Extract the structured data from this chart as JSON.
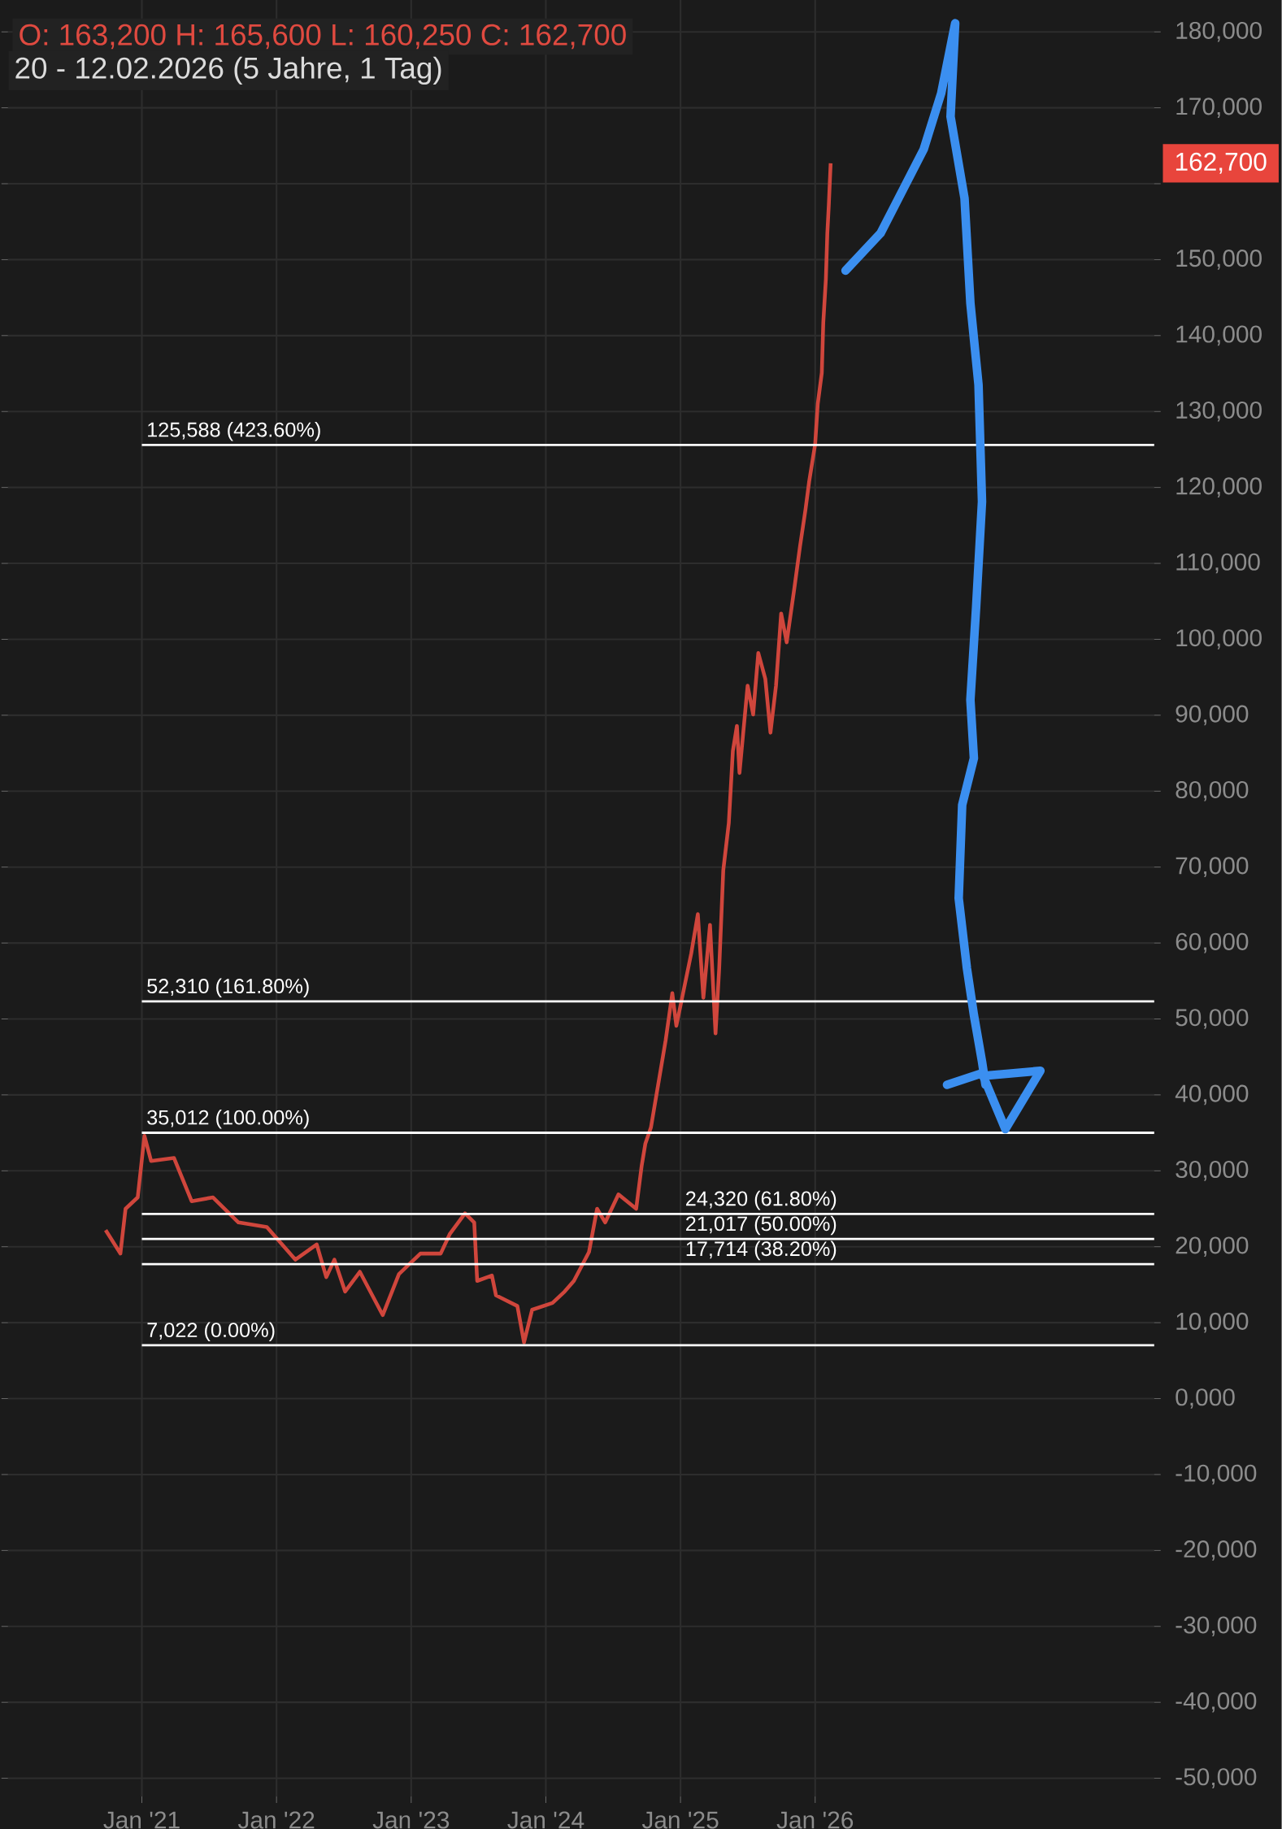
{
  "chart_data": {
    "type": "line",
    "title": "O: 163,200  H: 165,600  L: 160,250  C: 162,700",
    "subtitle": "20 - 12.02.2026  (5 Jahre, 1 Tag)",
    "x": [
      "2020-09-24",
      "2020-11-03",
      "2020-11-17",
      "2020-12-20",
      "2021-01-08",
      "2021-01-26",
      "2021-03-29",
      "2021-05-16",
      "2021-07-13",
      "2021-09-20",
      "2021-12-06",
      "2022-02-21",
      "2022-04-20",
      "2022-05-16",
      "2022-06-07",
      "2022-07-06",
      "2022-08-15",
      "2022-10-16",
      "2022-11-29",
      "2023-01-26",
      "2023-03-22",
      "2023-04-16",
      "2023-05-27",
      "2023-06-21",
      "2023-06-29",
      "2023-08-08",
      "2023-08-19",
      "2023-10-16",
      "2023-11-03",
      "2023-11-25",
      "2024-01-19",
      "2024-02-21",
      "2024-03-17",
      "2024-04-27",
      "2024-05-19",
      "2024-06-10",
      "2024-07-16",
      "2024-09-02",
      "2024-09-17",
      "2024-09-27",
      "2024-10-12",
      "2024-11-21",
      "2024-12-09",
      "2024-12-20",
      "2025-01-30",
      "2025-02-17",
      "2025-03-04",
      "2025-03-22",
      "2025-04-06",
      "2025-04-16",
      "2025-04-27",
      "2025-05-12",
      "2025-05-23",
      "2025-06-03",
      "2025-06-10",
      "2025-07-02",
      "2025-07-17",
      "2025-07-31",
      "2025-08-19",
      "2025-09-02",
      "2025-09-17",
      "2025-10-01",
      "2025-10-16",
      "2025-11-06",
      "2025-11-21",
      "2025-12-06",
      "2025-12-16",
      "2026-01-01",
      "2026-01-08",
      "2026-01-19",
      "2026-01-23",
      "2026-01-30",
      "2026-02-03",
      "2026-02-07",
      "2026-02-12"
    ],
    "series": [
      {
        "color": "#d0463c",
        "values": [
          22200,
          19100,
          25000,
          26500,
          34600,
          31300,
          31700,
          26000,
          26500,
          23200,
          22600,
          18300,
          20300,
          16000,
          18300,
          14100,
          16700,
          11000,
          16400,
          19100,
          19100,
          21700,
          24400,
          23200,
          15500,
          16200,
          13600,
          12200,
          7400,
          11700,
          12600,
          14100,
          15500,
          19300,
          25000,
          23200,
          26900,
          25000,
          30700,
          33600,
          35700,
          47200,
          53400,
          49100,
          58600,
          63800,
          52800,
          62400,
          48100,
          56700,
          69600,
          75800,
          85300,
          88600,
          82400,
          93900,
          90100,
          98200,
          94800,
          87700,
          93900,
          103400,
          99600,
          106800,
          112200,
          117100,
          120800,
          125700,
          131000,
          135100,
          141700,
          147400,
          153500,
          157200,
          162700
        ]
      }
    ],
    "xlim": [
      "2020-01-03",
      "2028-07-08"
    ],
    "ylim": [
      -52400,
      184200
    ],
    "xticks": [
      {
        "value": "2021-01-01",
        "label": "Jan '21"
      },
      {
        "value": "2022-01-01",
        "label": "Jan '22"
      },
      {
        "value": "2023-01-01",
        "label": "Jan '23"
      },
      {
        "value": "2024-01-01",
        "label": "Jan '24"
      },
      {
        "value": "2025-01-01",
        "label": "Jan '25"
      },
      {
        "value": "2026-01-01",
        "label": "Jan '26"
      }
    ],
    "yticks": [
      {
        "value": -50000,
        "label": "-50,000"
      },
      {
        "value": -40000,
        "label": "-40,000"
      },
      {
        "value": -30000,
        "label": "-30,000"
      },
      {
        "value": -20000,
        "label": "-20,000"
      },
      {
        "value": -10000,
        "label": "-10,000"
      },
      {
        "value": 0,
        "label": "0,000"
      },
      {
        "value": 10000,
        "label": "10,000"
      },
      {
        "value": 20000,
        "label": "20,000"
      },
      {
        "value": 30000,
        "label": "30,000"
      },
      {
        "value": 40000,
        "label": "40,000"
      },
      {
        "value": 50000,
        "label": "50,000"
      },
      {
        "value": 60000,
        "label": "60,000"
      },
      {
        "value": 70000,
        "label": "70,000"
      },
      {
        "value": 80000,
        "label": "80,000"
      },
      {
        "value": 90000,
        "label": "90,000"
      },
      {
        "value": 100000,
        "label": "100,000"
      },
      {
        "value": 110000,
        "label": "110,000"
      },
      {
        "value": 120000,
        "label": "120,000"
      },
      {
        "value": 130000,
        "label": "130,000"
      },
      {
        "value": 140000,
        "label": "140,000"
      },
      {
        "value": 150000,
        "label": "150,000"
      },
      {
        "value": 160000,
        "label": null
      },
      {
        "value": 170000,
        "label": "170,000"
      },
      {
        "value": 180000,
        "label": "180,000"
      }
    ],
    "grid": true,
    "ref_lines": [
      {
        "axis": "y",
        "value": 125588,
        "label": "125,588 (423.60%)",
        "color": "#ffffff"
      },
      {
        "axis": "y",
        "value": 52310,
        "label": "52,310 (161.80%)",
        "color": "#ffffff"
      },
      {
        "axis": "y",
        "value": 35012,
        "label": "35,012 (100.00%)",
        "color": "#ffffff"
      },
      {
        "axis": "y",
        "value": 24320,
        "label": "24,320 (61.80%)",
        "color": "#ffffff"
      },
      {
        "axis": "y",
        "value": 21017,
        "label": "21,017 (50.00%)",
        "color": "#ffffff"
      },
      {
        "axis": "y",
        "value": 17714,
        "label": "17,714 (38.20%)",
        "color": "#ffffff"
      },
      {
        "axis": "y",
        "value": 7022,
        "label": "7,022 (0.00%)",
        "color": "#ffffff"
      }
    ],
    "annotations": [
      "162,700"
    ]
  }
}
